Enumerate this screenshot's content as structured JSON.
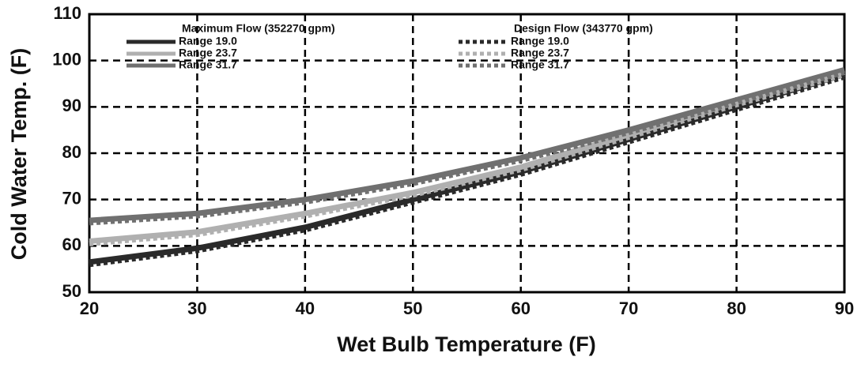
{
  "chart_data": {
    "type": "line",
    "xlabel": "Wet Bulb Temperature (F)",
    "ylabel": "Cold Water Temp. (F)",
    "legend_titles": [
      "Maximum Flow (352270 gpm)",
      "Design Flow (343770 gpm)"
    ],
    "x": [
      20,
      30,
      40,
      50,
      60,
      70,
      80,
      90
    ],
    "series": [
      {
        "name": "Range 19.0",
        "color": "#2a2a2a",
        "style": "solid",
        "values": [
          56.5,
          59.5,
          64,
          70,
          76,
          83,
          90,
          97
        ]
      },
      {
        "name": "Range 23.7",
        "color": "#b0b0b0",
        "style": "solid",
        "values": [
          61,
          63,
          67,
          71.5,
          77,
          84,
          91,
          97.5
        ]
      },
      {
        "name": "Range 31.7",
        "color": "#707070",
        "style": "solid",
        "values": [
          65.5,
          67,
          70,
          74,
          79,
          85,
          91.5,
          98
        ]
      },
      {
        "name": "Range 19.0",
        "color": "#2a2a2a",
        "style": "dashed",
        "values": [
          56,
          59,
          63.5,
          69.5,
          75.5,
          82.5,
          89.5,
          96.5
        ]
      },
      {
        "name": "Range 23.7",
        "color": "#b0b0b0",
        "style": "dashed",
        "values": [
          60.5,
          62.5,
          66.5,
          71,
          76.5,
          83.5,
          90.5,
          97
        ]
      },
      {
        "name": "Range 31.7",
        "color": "#707070",
        "style": "dashed",
        "values": [
          65,
          66.5,
          69.5,
          73.5,
          78.5,
          84.5,
          91,
          97.5
        ]
      }
    ],
    "xlim": [
      20,
      90
    ],
    "xticks": [
      20,
      30,
      40,
      50,
      60,
      70,
      80,
      90
    ],
    "ylim": [
      50,
      110
    ],
    "yticks": [
      50,
      60,
      70,
      80,
      90,
      100,
      110
    ],
    "grid": true
  }
}
